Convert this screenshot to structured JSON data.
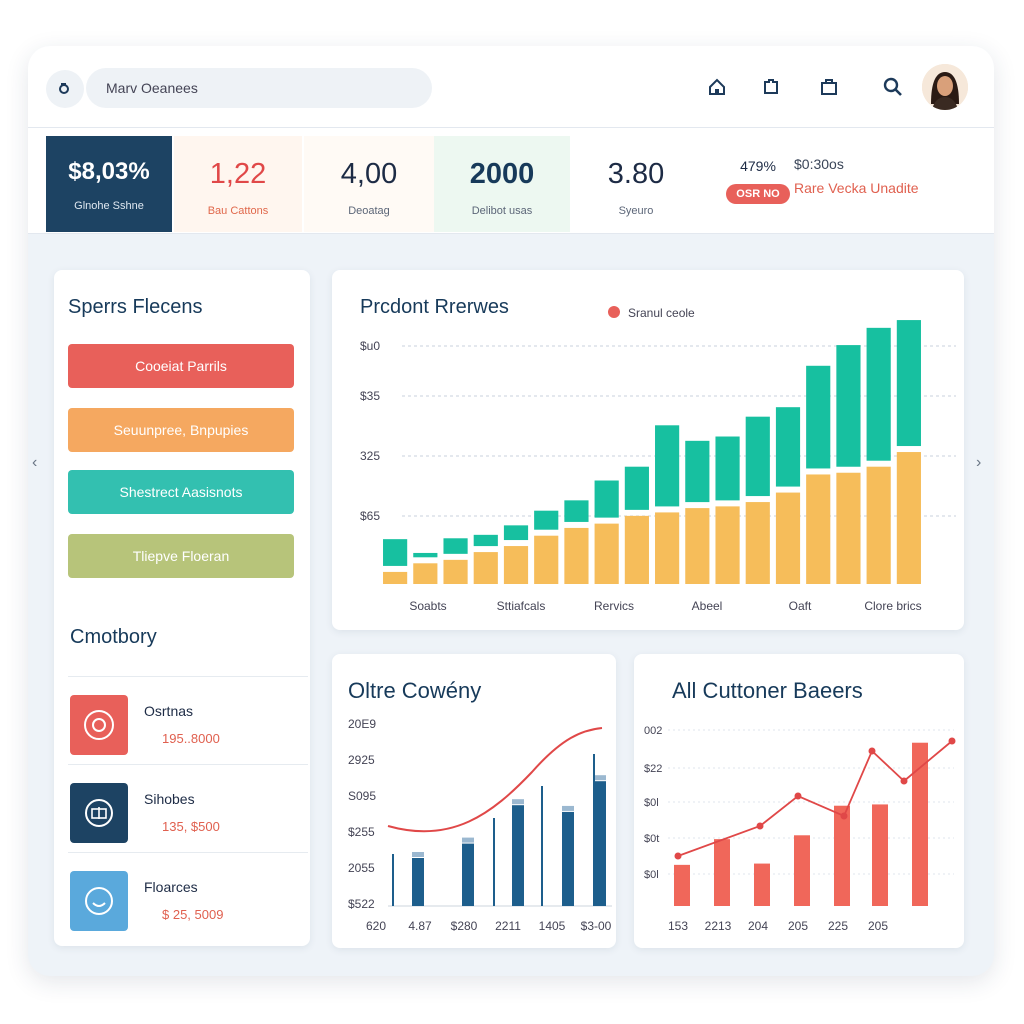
{
  "header": {
    "search_value": "Marv Oeanees",
    "icons": [
      "search-icon",
      "home-icon",
      "puzzle-icon",
      "bag-icon",
      "magnify-icon"
    ]
  },
  "stats": [
    {
      "value": "$8,03%",
      "label": "Glnohe Sshne"
    },
    {
      "value": "1,22",
      "label": "Bau Cattons"
    },
    {
      "value": "4,00",
      "label": "Deoatag"
    },
    {
      "value": "2000",
      "label": "Delibot usas"
    },
    {
      "value": "3.80",
      "label": "Syeuro"
    }
  ],
  "stat_extra": {
    "pct": "479%",
    "pill": "OSR NO"
  },
  "stat_note": {
    "line1": "$0:30os",
    "line2": "Rare Vecka Unadite"
  },
  "left_panel": {
    "title": "Sperrs Flecens",
    "buttons": [
      "Cooeiat Parrils",
      "Seuunpree, Bnpupies",
      "Shestrect Aasisnots",
      "Tliepve Floeran"
    ],
    "category_title": "Cmotbory",
    "categories": [
      {
        "name": "Osrtnas",
        "value": "195..8000"
      },
      {
        "name": "Sihobes",
        "value": "135, $500"
      },
      {
        "name": "Floarces",
        "value": "$ 25, 5009"
      }
    ]
  },
  "colors": {
    "teal": "#17c0a0",
    "orange": "#f6bd5a",
    "red": "#e8605a",
    "navy": "#1d5e8c",
    "dark": "#1d4363"
  },
  "chart_data": [
    {
      "type": "bar",
      "title": "Prcdont Rrerwes",
      "legend": "Sranul ceole",
      "yticks": [
        "$u0",
        "$35",
        "325",
        "$65"
      ],
      "xlabels": [
        "Soabts",
        "Sttiafcals",
        "Rervics",
        "Abeel",
        "Oaft",
        "Clore brics"
      ],
      "series": [
        {
          "name": "base",
          "values": [
            14,
            24,
            28,
            37,
            44,
            56,
            65,
            70,
            79,
            83,
            88,
            90,
            95,
            106,
            127,
            129,
            136,
            153
          ]
        },
        {
          "name": "top",
          "values": [
            52,
            36,
            53,
            57,
            68,
            85,
            97,
            120,
            136,
            184,
            166,
            171,
            194,
            205,
            253,
            277,
            297,
            306
          ]
        }
      ],
      "ylim": [
        0,
        320
      ]
    },
    {
      "type": "bar",
      "title": "Oltre Cowény",
      "yticks": [
        "20E9",
        "2925",
        "S095",
        "$255",
        "2055",
        "$522"
      ],
      "xlabels": [
        "620",
        "4.87",
        "$280",
        "2211",
        "1405",
        "$3-00"
      ],
      "series": [
        {
          "name": "bars",
          "values": [
            50,
            65,
            78,
            105,
            98,
            130,
            76
          ]
        },
        {
          "name": "line",
          "values": [
            0.86,
            0.9,
            1.0,
            1.14,
            1.42,
            1.95
          ]
        }
      ],
      "ylim": [
        0,
        200
      ]
    },
    {
      "type": "bar",
      "title": "All Cuttoner Baeers",
      "yticks": [
        "002",
        "$22",
        "$0l",
        "$0t",
        "$0l"
      ],
      "xlabels": [
        "153",
        "2213",
        "204",
        "205",
        "225",
        "205"
      ],
      "series": [
        {
          "name": "bars",
          "values": [
            32,
            52,
            33,
            55,
            78,
            79,
            127
          ]
        },
        {
          "name": "line",
          "values": [
            0.6,
            1.2,
            1.8,
            1.4,
            2.7,
            2.1,
            2.9
          ]
        }
      ],
      "ylim": [
        0,
        140
      ]
    }
  ]
}
